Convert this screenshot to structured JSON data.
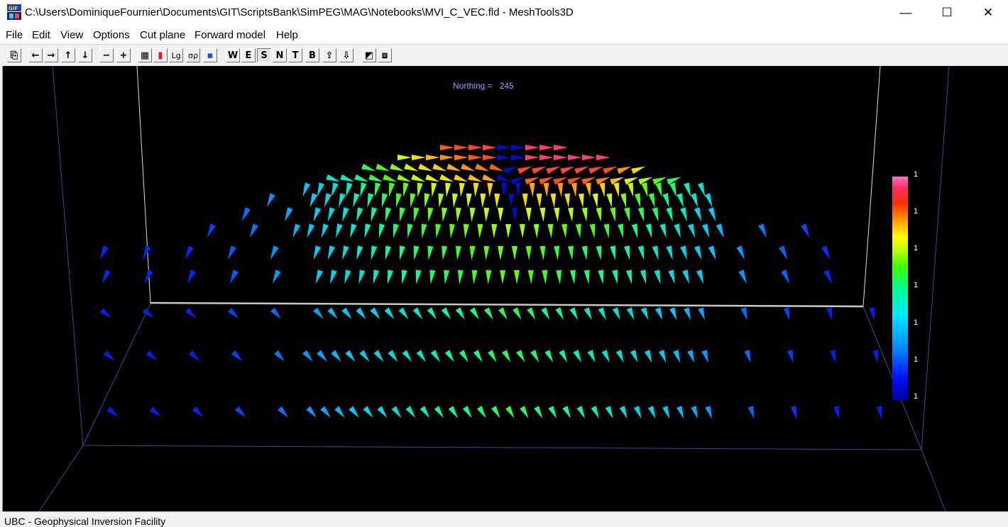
{
  "window": {
    "title": "C:\\Users\\DominiqueFournier\\Documents\\GIT\\ScriptsBank\\SimPEG\\MAG\\Notebooks\\MVI_C_VEC.fld - MeshTools3D",
    "minimize": "—",
    "maximize": "☐",
    "close": "✕"
  },
  "menu": [
    "File",
    "Edit",
    "View",
    "Options",
    "Cut plane",
    "Forward model",
    "Help"
  ],
  "toolbar": [
    {
      "name": "copy-button",
      "label": "⎘"
    },
    {
      "name": "pan-left-button",
      "label": "←"
    },
    {
      "name": "pan-right-button",
      "label": "→"
    },
    {
      "name": "pan-up-button",
      "label": "↑"
    },
    {
      "name": "pan-down-button",
      "label": "↓"
    },
    {
      "name": "zoom-out-button",
      "label": "−"
    },
    {
      "name": "zoom-in-button",
      "label": "+"
    },
    {
      "name": "mesh-grid-button",
      "label": "▦"
    },
    {
      "name": "colorbar-toggle-button",
      "label": "▮"
    },
    {
      "name": "log-scale-button",
      "label": "Lg"
    },
    {
      "name": "sigma-button",
      "label": "σρ"
    },
    {
      "name": "color-palette-button",
      "label": "▪"
    },
    {
      "name": "view-west-button",
      "label": "W"
    },
    {
      "name": "view-east-button",
      "label": "E"
    },
    {
      "name": "view-south-button",
      "label": "S"
    },
    {
      "name": "view-north-button",
      "label": "N"
    },
    {
      "name": "view-top-button",
      "label": "T"
    },
    {
      "name": "view-bottom-button",
      "label": "B"
    },
    {
      "name": "slice-up-button",
      "label": "⇪"
    },
    {
      "name": "slice-down-button",
      "label": "⇩"
    },
    {
      "name": "cut-plane-button",
      "label": "◩"
    },
    {
      "name": "reset-view-button",
      "label": "⧈"
    }
  ],
  "viewport": {
    "section_label": "Northing =",
    "section_value": "245"
  },
  "colorbar": {
    "tick_labels": [
      "1",
      "1",
      "1",
      "1",
      "1",
      "1",
      "1"
    ]
  },
  "status": {
    "text": "UBC - Geophysical Inversion Facility"
  },
  "colors": {
    "background": "#000000",
    "frame": "#3a4a90",
    "baseline": "#c8c8c8",
    "label": "#8fa3ff"
  }
}
